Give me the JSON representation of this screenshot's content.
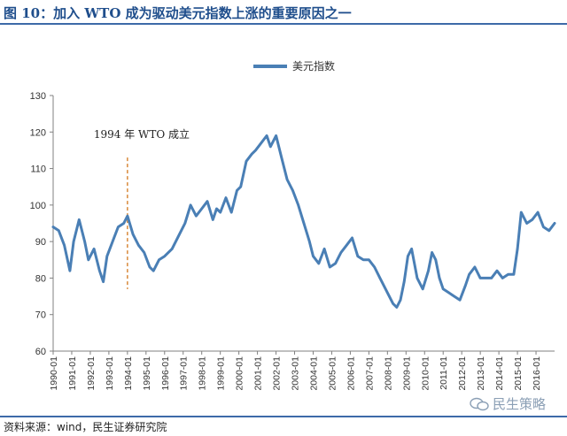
{
  "header": {
    "title": "图 10：加入 WTO 成为驱动美元指数上涨的重要原因之一"
  },
  "footer": {
    "source": "资料来源：wind，民生证券研究院"
  },
  "watermark": {
    "text": "民生策略",
    "icon": "wechat-icon"
  },
  "colors": {
    "series": "#4a7fb5",
    "annotation": "#d9893a",
    "title": "#1f4e8c",
    "rule": "#3d6aa8"
  },
  "chart_data": {
    "type": "line",
    "title": "",
    "xlabel": "",
    "ylabel": "",
    "ylim": [
      60,
      130
    ],
    "yticks": [
      60,
      70,
      80,
      90,
      100,
      110,
      120,
      130
    ],
    "xlim": [
      1990.0,
      2017.0
    ],
    "xticks": [
      "1990-01",
      "1991-01",
      "1992-01",
      "1993-01",
      "1994-01",
      "1995-01",
      "1996-01",
      "1997-01",
      "1998-01",
      "1999-01",
      "2000-01",
      "2001-01",
      "2002-01",
      "2003-01",
      "2004-01",
      "2005-01",
      "2006-01",
      "2007-01",
      "2008-01",
      "2009-01",
      "2010-01",
      "2011-01",
      "2012-01",
      "2013-01",
      "2014-01",
      "2015-01",
      "2016-01"
    ],
    "grid": false,
    "legend_position": "top-center",
    "series": [
      {
        "name": "美元指数",
        "x": [
          1990.0,
          1990.3,
          1990.6,
          1990.9,
          1991.1,
          1991.4,
          1991.7,
          1991.9,
          1992.2,
          1992.5,
          1992.7,
          1992.9,
          1993.2,
          1993.5,
          1993.8,
          1994.0,
          1994.3,
          1994.6,
          1994.9,
          1995.2,
          1995.4,
          1995.7,
          1996.0,
          1996.4,
          1996.8,
          1997.1,
          1997.4,
          1997.7,
          1998.0,
          1998.3,
          1998.6,
          1998.8,
          1999.0,
          1999.3,
          1999.6,
          1999.9,
          2000.1,
          2000.4,
          2000.7,
          2000.9,
          2001.2,
          2001.5,
          2001.7,
          2002.0,
          2002.3,
          2002.6,
          2002.9,
          2003.2,
          2003.5,
          2003.8,
          2004.0,
          2004.3,
          2004.6,
          2004.9,
          2005.2,
          2005.5,
          2005.8,
          2006.1,
          2006.4,
          2006.7,
          2007.0,
          2007.3,
          2007.6,
          2007.9,
          2008.1,
          2008.3,
          2008.5,
          2008.7,
          2008.9,
          2009.1,
          2009.3,
          2009.6,
          2009.9,
          2010.2,
          2010.4,
          2010.6,
          2010.8,
          2011.0,
          2011.3,
          2011.6,
          2011.9,
          2012.2,
          2012.4,
          2012.7,
          2013.0,
          2013.3,
          2013.6,
          2013.9,
          2014.2,
          2014.5,
          2014.8,
          2015.0,
          2015.2,
          2015.5,
          2015.8,
          2016.1,
          2016.4,
          2016.7,
          2017.0
        ],
        "y": [
          94,
          93,
          89,
          82,
          90,
          96,
          90,
          85,
          88,
          82,
          79,
          86,
          90,
          94,
          95,
          97,
          92,
          89,
          87,
          83,
          82,
          85,
          86,
          88,
          92,
          95,
          100,
          97,
          99,
          101,
          96,
          99,
          98,
          102,
          98,
          104,
          105,
          112,
          114,
          115,
          117,
          119,
          116,
          119,
          113,
          107,
          104,
          100,
          95,
          90,
          86,
          84,
          88,
          83,
          84,
          87,
          89,
          91,
          86,
          85,
          85,
          83,
          80,
          77,
          75,
          73,
          72,
          74,
          79,
          86,
          88,
          80,
          77,
          82,
          87,
          85,
          80,
          77,
          76,
          75,
          74,
          78,
          81,
          83,
          80,
          80,
          80,
          82,
          80,
          81,
          81,
          88,
          98,
          95,
          96,
          98,
          94,
          93,
          95
        ]
      }
    ],
    "annotations": [
      {
        "text": "1994 年 WTO 成立",
        "x": 1994.0,
        "y_from": 77,
        "y_to": 113
      }
    ]
  }
}
